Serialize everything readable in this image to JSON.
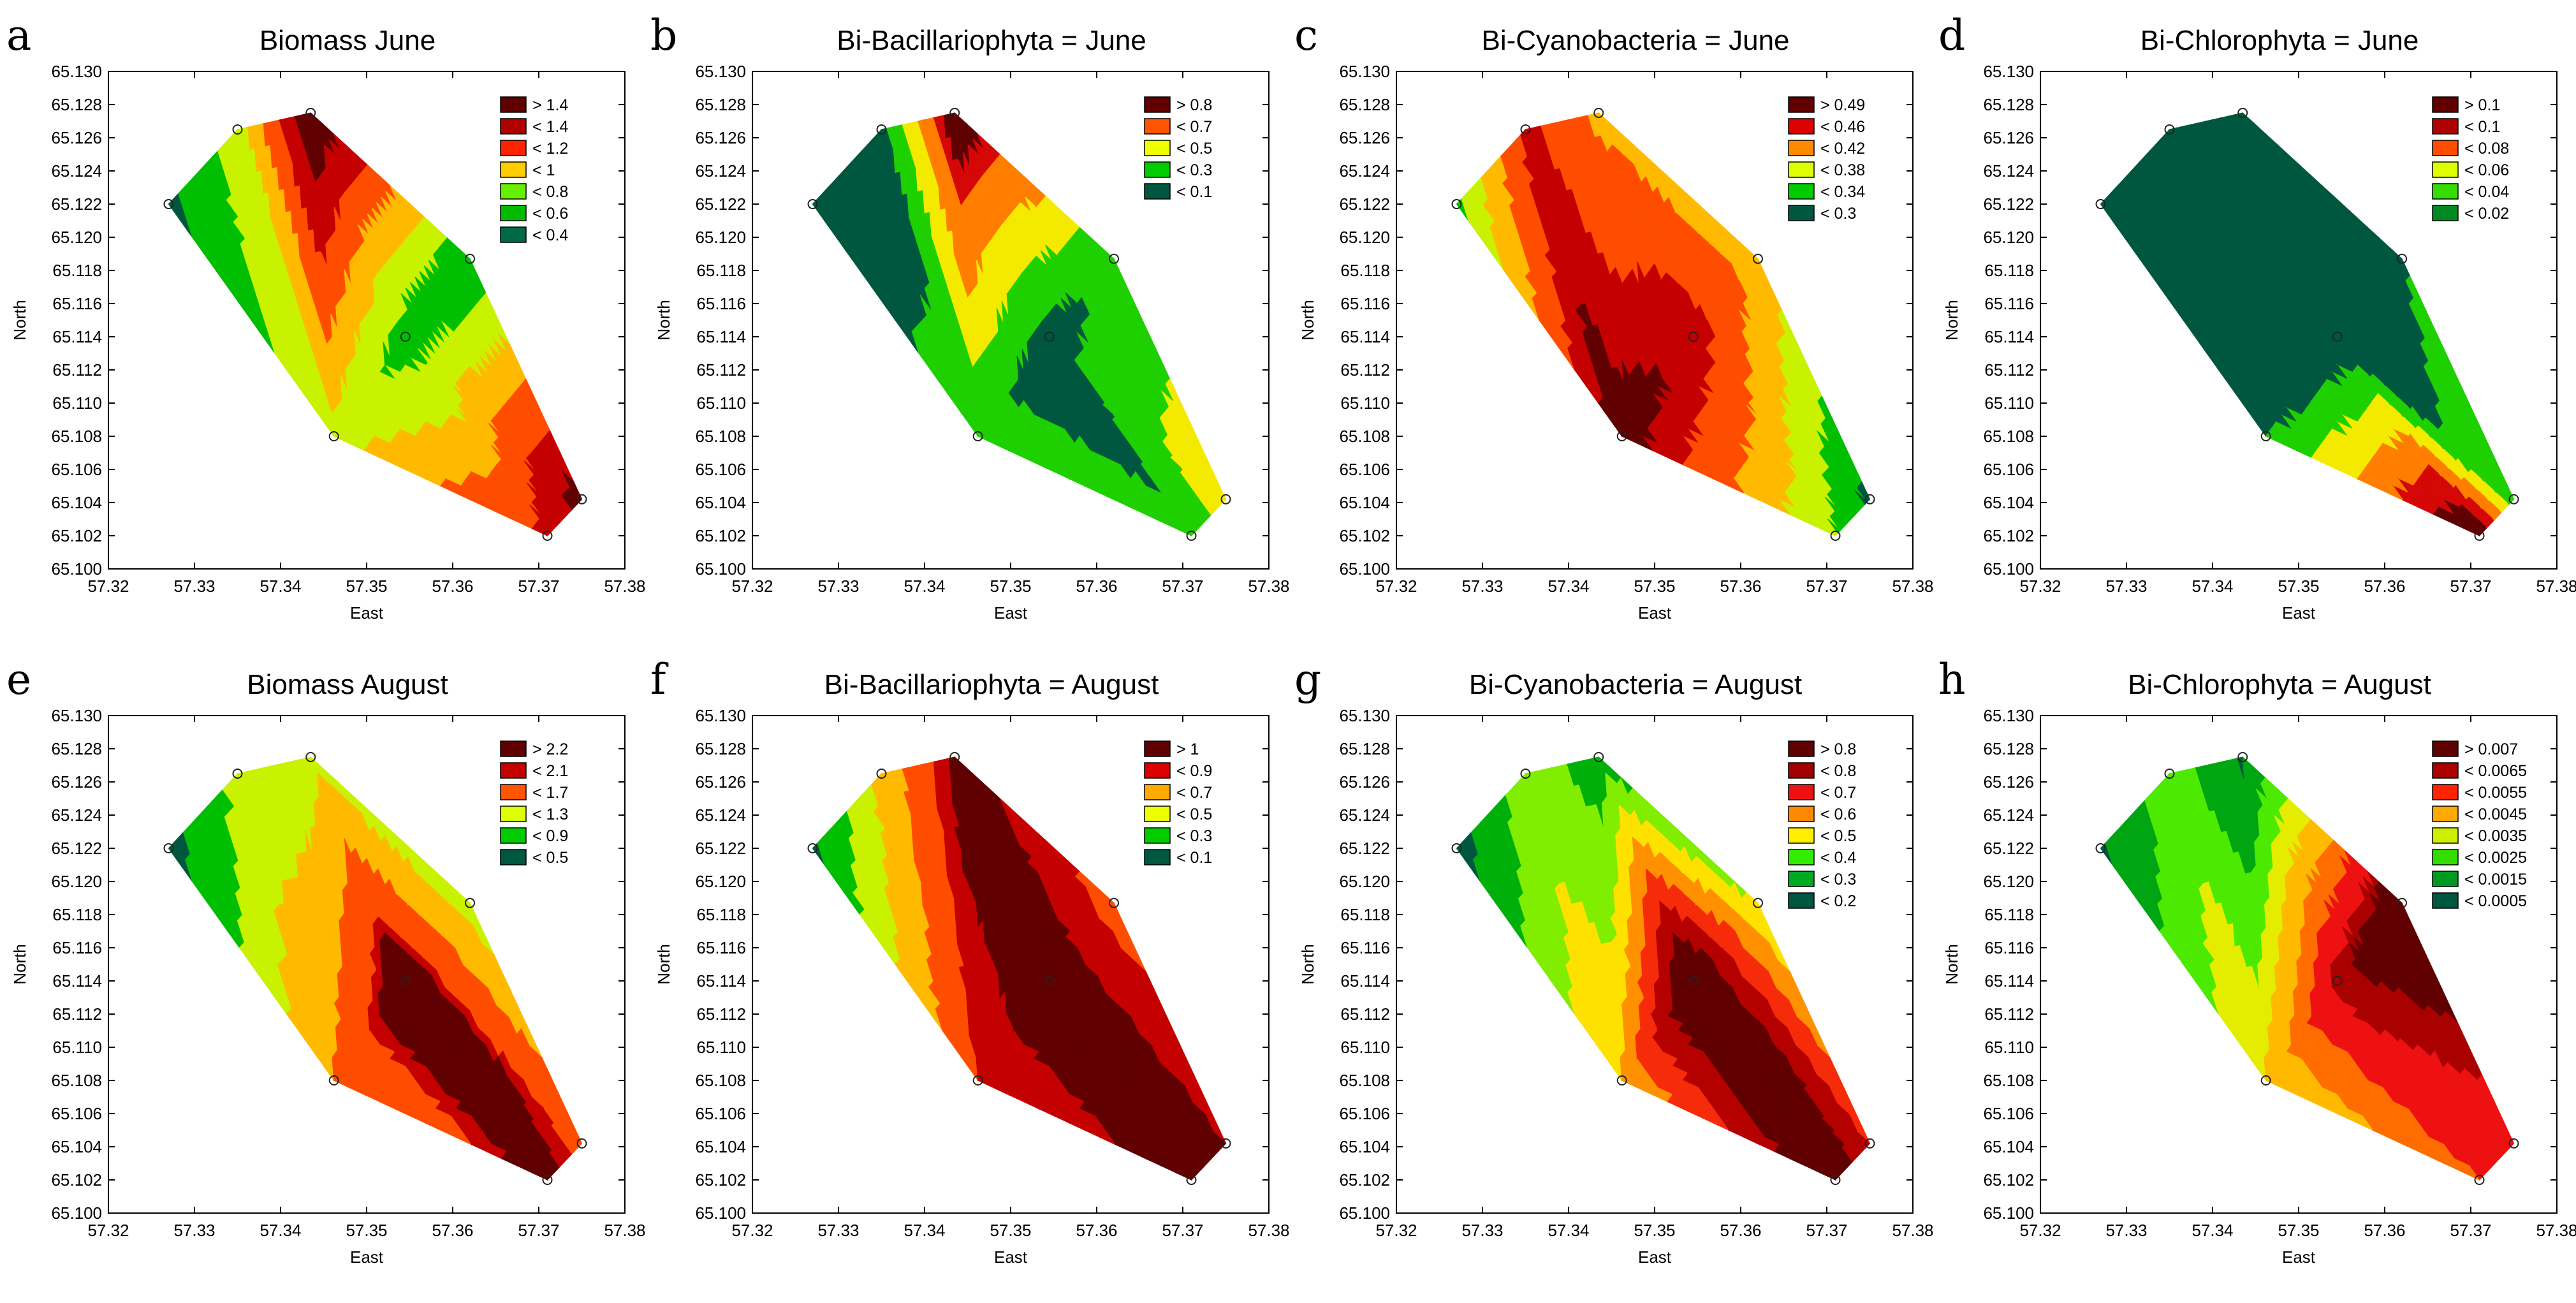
{
  "figure": {
    "x_axis_label": "East",
    "y_axis_label": "North",
    "x_ticks": [
      "57.32",
      "57.33",
      "57.34",
      "57.35",
      "57.36",
      "57.37",
      "57.38"
    ],
    "y_ticks": [
      "65.100",
      "65.102",
      "65.104",
      "65.106",
      "65.108",
      "65.110",
      "65.112",
      "65.114",
      "65.116",
      "65.118",
      "65.120",
      "65.122",
      "65.124",
      "65.126",
      "65.128",
      "65.130"
    ],
    "palette": [
      "#00573f",
      "#008c22",
      "#00bf00",
      "#4cea00",
      "#c8f200",
      "#ffe800",
      "#ffba00",
      "#ff8a00",
      "#ff4d00",
      "#ee1111",
      "#c40000",
      "#8e0000",
      "#600000"
    ]
  },
  "chart_data": [
    {
      "panel": "a",
      "type": "heatmap",
      "title": "Biomass June",
      "xlabel": "East",
      "ylabel": "North",
      "xlim": [
        57.32,
        57.38
      ],
      "ylim": [
        65.1,
        65.13
      ],
      "stations": [
        [
          57.327,
          65.122
        ],
        [
          57.335,
          65.1265
        ],
        [
          57.3435,
          65.1275
        ],
        [
          57.362,
          65.1187
        ],
        [
          57.3545,
          65.114
        ],
        [
          57.3462,
          65.108
        ],
        [
          57.371,
          65.102
        ],
        [
          57.375,
          65.1042
        ]
      ],
      "station_values": [
        0.35,
        0.7,
        1.6,
        0.45,
        0.5,
        0.75,
        1.25,
        1.5
      ],
      "legend": [
        "> 1.4",
        "< 1.4",
        "< 1.2",
        "< 1",
        "< 0.8",
        "< 0.6",
        "< 0.4"
      ],
      "legend_colors": [
        "#600000",
        "#b00000",
        "#ff2200",
        "#ffcc00",
        "#66f000",
        "#00bb00",
        "#006a45"
      ],
      "thresholds": [
        0.4,
        0.6,
        0.8,
        1.0,
        1.2,
        1.4
      ]
    },
    {
      "panel": "b",
      "type": "heatmap",
      "title": "Bi-Bacillariophyta = June",
      "xlabel": "East",
      "ylabel": "North",
      "xlim": [
        57.32,
        57.38
      ],
      "ylim": [
        65.1,
        65.13
      ],
      "stations": [
        [
          57.327,
          65.122
        ],
        [
          57.335,
          65.1265
        ],
        [
          57.3435,
          65.1275
        ],
        [
          57.362,
          65.1187
        ],
        [
          57.3545,
          65.114
        ],
        [
          57.3462,
          65.108
        ],
        [
          57.371,
          65.102
        ],
        [
          57.375,
          65.1042
        ]
      ],
      "station_values": [
        0.02,
        0.05,
        0.95,
        0.15,
        0.03,
        0.15,
        0.12,
        0.45
      ],
      "legend": [
        "> 0.8",
        "< 0.7",
        "< 0.5",
        "< 0.3",
        "< 0.1"
      ],
      "legend_colors": [
        "#600000",
        "#ff5500",
        "#eeff00",
        "#00cc00",
        "#00573f"
      ],
      "thresholds": [
        0.1,
        0.3,
        0.5,
        0.7,
        0.8
      ]
    },
    {
      "panel": "c",
      "type": "heatmap",
      "title": "Bi-Cyanobacteria = June",
      "xlabel": "East",
      "ylabel": "North",
      "xlim": [
        57.32,
        57.38
      ],
      "ylim": [
        65.1,
        65.13
      ],
      "stations": [
        [
          57.327,
          65.122
        ],
        [
          57.335,
          65.1265
        ],
        [
          57.3435,
          65.1275
        ],
        [
          57.362,
          65.1187
        ],
        [
          57.3545,
          65.114
        ],
        [
          57.3462,
          65.108
        ],
        [
          57.371,
          65.102
        ],
        [
          57.375,
          65.1042
        ]
      ],
      "station_values": [
        0.33,
        0.47,
        0.41,
        0.4,
        0.48,
        0.51,
        0.34,
        0.29
      ],
      "legend": [
        "> 0.49",
        "< 0.46",
        "< 0.42",
        "< 0.38",
        "< 0.34",
        "< 0.3"
      ],
      "legend_colors": [
        "#600000",
        "#dd0000",
        "#ff8a00",
        "#ddff00",
        "#00cc00",
        "#00573f"
      ],
      "thresholds": [
        0.3,
        0.34,
        0.38,
        0.42,
        0.46,
        0.49
      ]
    },
    {
      "panel": "d",
      "type": "heatmap",
      "title": "Bi-Chlorophyta = June",
      "xlabel": "East",
      "ylabel": "North",
      "xlim": [
        57.32,
        57.38
      ],
      "ylim": [
        65.1,
        65.13
      ],
      "stations": [
        [
          57.327,
          65.122
        ],
        [
          57.335,
          65.1265
        ],
        [
          57.3435,
          65.1275
        ],
        [
          57.362,
          65.1187
        ],
        [
          57.3545,
          65.114
        ],
        [
          57.3462,
          65.108
        ],
        [
          57.371,
          65.102
        ],
        [
          57.375,
          65.1042
        ]
      ],
      "station_values": [
        0.005,
        0.005,
        0.005,
        0.02,
        0.005,
        0.02,
        0.12,
        0.03
      ],
      "legend": [
        "> 0.1",
        "< 0.1",
        "< 0.08",
        "< 0.06",
        "< 0.04",
        "< 0.02"
      ],
      "legend_colors": [
        "#600000",
        "#b00000",
        "#ff4d00",
        "#ddff00",
        "#33dd00",
        "#008a22"
      ],
      "thresholds": [
        0.02,
        0.04,
        0.06,
        0.08,
        0.1
      ]
    },
    {
      "panel": "e",
      "type": "heatmap",
      "title": "Biomass August",
      "xlabel": "East",
      "ylabel": "North",
      "xlim": [
        57.32,
        57.38
      ],
      "ylim": [
        65.1,
        65.13
      ],
      "stations": [
        [
          57.327,
          65.122
        ],
        [
          57.335,
          65.1265
        ],
        [
          57.3435,
          65.1275
        ],
        [
          57.362,
          65.1187
        ],
        [
          57.3545,
          65.114
        ],
        [
          57.3462,
          65.108
        ],
        [
          57.371,
          65.102
        ],
        [
          57.375,
          65.1042
        ]
      ],
      "station_values": [
        0.3,
        1.0,
        1.2,
        1.1,
        2.5,
        1.7,
        2.3,
        2.0
      ],
      "legend": [
        "> 2.2",
        "< 2.1",
        "< 1.7",
        "< 1.3",
        "< 0.9",
        "< 0.5"
      ],
      "legend_colors": [
        "#600000",
        "#c40000",
        "#ff5500",
        "#ddff00",
        "#00cc00",
        "#00573f"
      ],
      "thresholds": [
        0.5,
        0.9,
        1.3,
        1.7,
        2.1,
        2.2
      ]
    },
    {
      "panel": "f",
      "type": "heatmap",
      "title": "Bi-Bacillariophyta = August",
      "xlabel": "East",
      "ylabel": "North",
      "xlim": [
        57.32,
        57.38
      ],
      "ylim": [
        65.1,
        65.13
      ],
      "stations": [
        [
          57.327,
          65.122
        ],
        [
          57.335,
          65.1265
        ],
        [
          57.3435,
          65.1275
        ],
        [
          57.362,
          65.1187
        ],
        [
          57.3545,
          65.114
        ],
        [
          57.3462,
          65.108
        ],
        [
          57.371,
          65.102
        ],
        [
          57.375,
          65.1042
        ]
      ],
      "station_values": [
        0.05,
        0.55,
        1.05,
        0.85,
        1.1,
        0.9,
        1.05,
        1.0
      ],
      "legend": [
        "> 1",
        "< 0.9",
        "< 0.7",
        "< 0.5",
        "< 0.3",
        "< 0.1"
      ],
      "legend_colors": [
        "#600000",
        "#dd0000",
        "#ffaa00",
        "#eeff00",
        "#00cc00",
        "#00573f"
      ],
      "thresholds": [
        0.1,
        0.3,
        0.5,
        0.7,
        0.9,
        1.0
      ]
    },
    {
      "panel": "g",
      "type": "heatmap",
      "title": "Bi-Cyanobacteria = August",
      "xlabel": "East",
      "ylabel": "North",
      "xlim": [
        57.32,
        57.38
      ],
      "ylim": [
        65.1,
        65.13
      ],
      "stations": [
        [
          57.327,
          65.122
        ],
        [
          57.335,
          65.1265
        ],
        [
          57.3435,
          65.1275
        ],
        [
          57.362,
          65.1187
        ],
        [
          57.3545,
          65.114
        ],
        [
          57.3462,
          65.108
        ],
        [
          57.371,
          65.102
        ],
        [
          57.375,
          65.1042
        ]
      ],
      "station_values": [
        0.15,
        0.35,
        0.25,
        0.4,
        0.95,
        0.5,
        0.9,
        0.7
      ],
      "legend": [
        "> 0.8",
        "< 0.8",
        "< 0.7",
        "< 0.6",
        "< 0.5",
        "< 0.4",
        "< 0.3",
        "< 0.2"
      ],
      "legend_colors": [
        "#600000",
        "#a00000",
        "#ee1111",
        "#ff8a00",
        "#ffee00",
        "#33ee00",
        "#00aa22",
        "#00573f"
      ],
      "thresholds": [
        0.2,
        0.3,
        0.4,
        0.5,
        0.6,
        0.7,
        0.8
      ]
    },
    {
      "panel": "h",
      "type": "heatmap",
      "title": "Bi-Chlorophyta = August",
      "xlabel": "East",
      "ylabel": "North",
      "xlim": [
        57.32,
        57.38
      ],
      "ylim": [
        65.1,
        65.13
      ],
      "stations": [
        [
          57.327,
          65.122
        ],
        [
          57.335,
          65.1265
        ],
        [
          57.3435,
          65.1275
        ],
        [
          57.362,
          65.1187
        ],
        [
          57.3545,
          65.114
        ],
        [
          57.3462,
          65.108
        ],
        [
          57.371,
          65.102
        ],
        [
          57.375,
          65.1042
        ]
      ],
      "station_values": [
        0.0003,
        0.002,
        0.0003,
        0.008,
        0.0068,
        0.0035,
        0.0055,
        0.006
      ],
      "legend": [
        "> 0.007",
        "< 0.0065",
        "< 0.0055",
        "< 0.0045",
        "< 0.0035",
        "< 0.0025",
        "< 0.0015",
        "< 0.0005"
      ],
      "legend_colors": [
        "#600000",
        "#aa0000",
        "#ff2200",
        "#ffaa00",
        "#ccf000",
        "#33dd00",
        "#009a22",
        "#00573f"
      ],
      "thresholds": [
        0.0005,
        0.0015,
        0.0025,
        0.0035,
        0.0045,
        0.0055,
        0.0065,
        0.007
      ]
    }
  ]
}
